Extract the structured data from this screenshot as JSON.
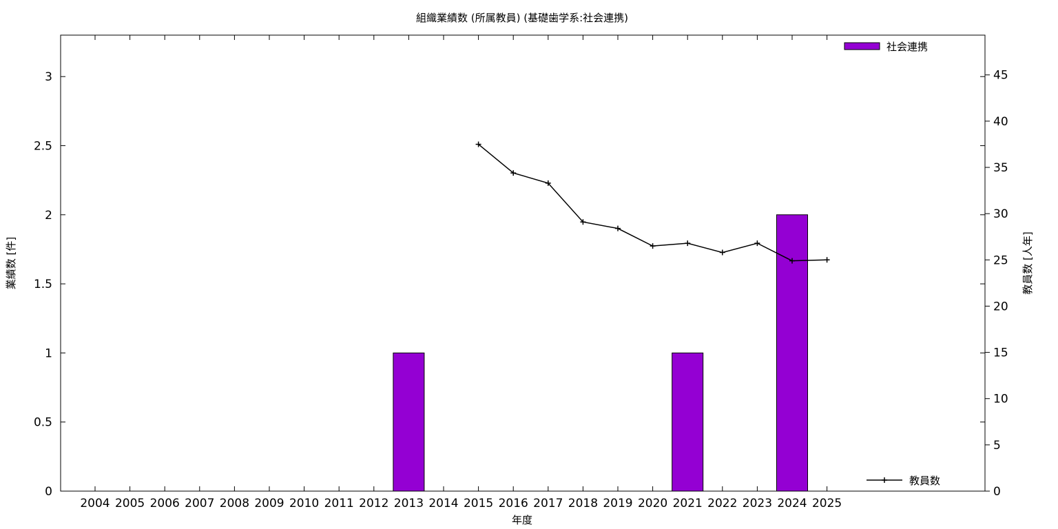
{
  "chart_data": {
    "type": "bar",
    "title": "組織業績数 (所属教員) (基礎歯学系:社会連携)",
    "xlabel": "年度",
    "ylabel": "業績数 [件]",
    "y2label": "教員数 [人年]",
    "categories": [
      "2004",
      "2005",
      "2006",
      "2007",
      "2008",
      "2009",
      "2010",
      "2011",
      "2012",
      "2013",
      "2014",
      "2015",
      "2016",
      "2017",
      "2018",
      "2019",
      "2020",
      "2021",
      "2022",
      "2023",
      "2024",
      "2025"
    ],
    "ylim": [
      0,
      3.3
    ],
    "y_ticks": [
      "0",
      "0.5",
      "1",
      "1.5",
      "2",
      "2.5",
      "3"
    ],
    "y2lim": [
      0,
      49.3
    ],
    "y2_ticks": [
      "0",
      "5",
      "10",
      "15",
      "20",
      "25",
      "30",
      "35",
      "40",
      "45"
    ],
    "grid": false,
    "series": [
      {
        "name": "社会連携",
        "type": "bar",
        "axis": "y",
        "color": "#9400d3",
        "values": [
          0,
          0,
          0,
          0,
          0,
          0,
          0,
          0,
          0,
          1,
          0,
          0,
          0,
          0,
          0,
          0,
          0,
          1,
          0,
          0,
          2,
          0
        ]
      },
      {
        "name": "教員数",
        "type": "line",
        "axis": "y2",
        "color": "#000000",
        "marker": "plus",
        "x": [
          "2015",
          "2016",
          "2017",
          "2018",
          "2019",
          "2020",
          "2021",
          "2022",
          "2023",
          "2024",
          "2025"
        ],
        "values": [
          37.5,
          34.4,
          33.3,
          29.1,
          28.4,
          26.5,
          26.8,
          25.8,
          26.8,
          24.9,
          25.0
        ]
      }
    ],
    "legend": [
      {
        "label": "社会連携",
        "placement": "top-right"
      },
      {
        "label": "教員数",
        "placement": "bottom-right"
      }
    ]
  }
}
